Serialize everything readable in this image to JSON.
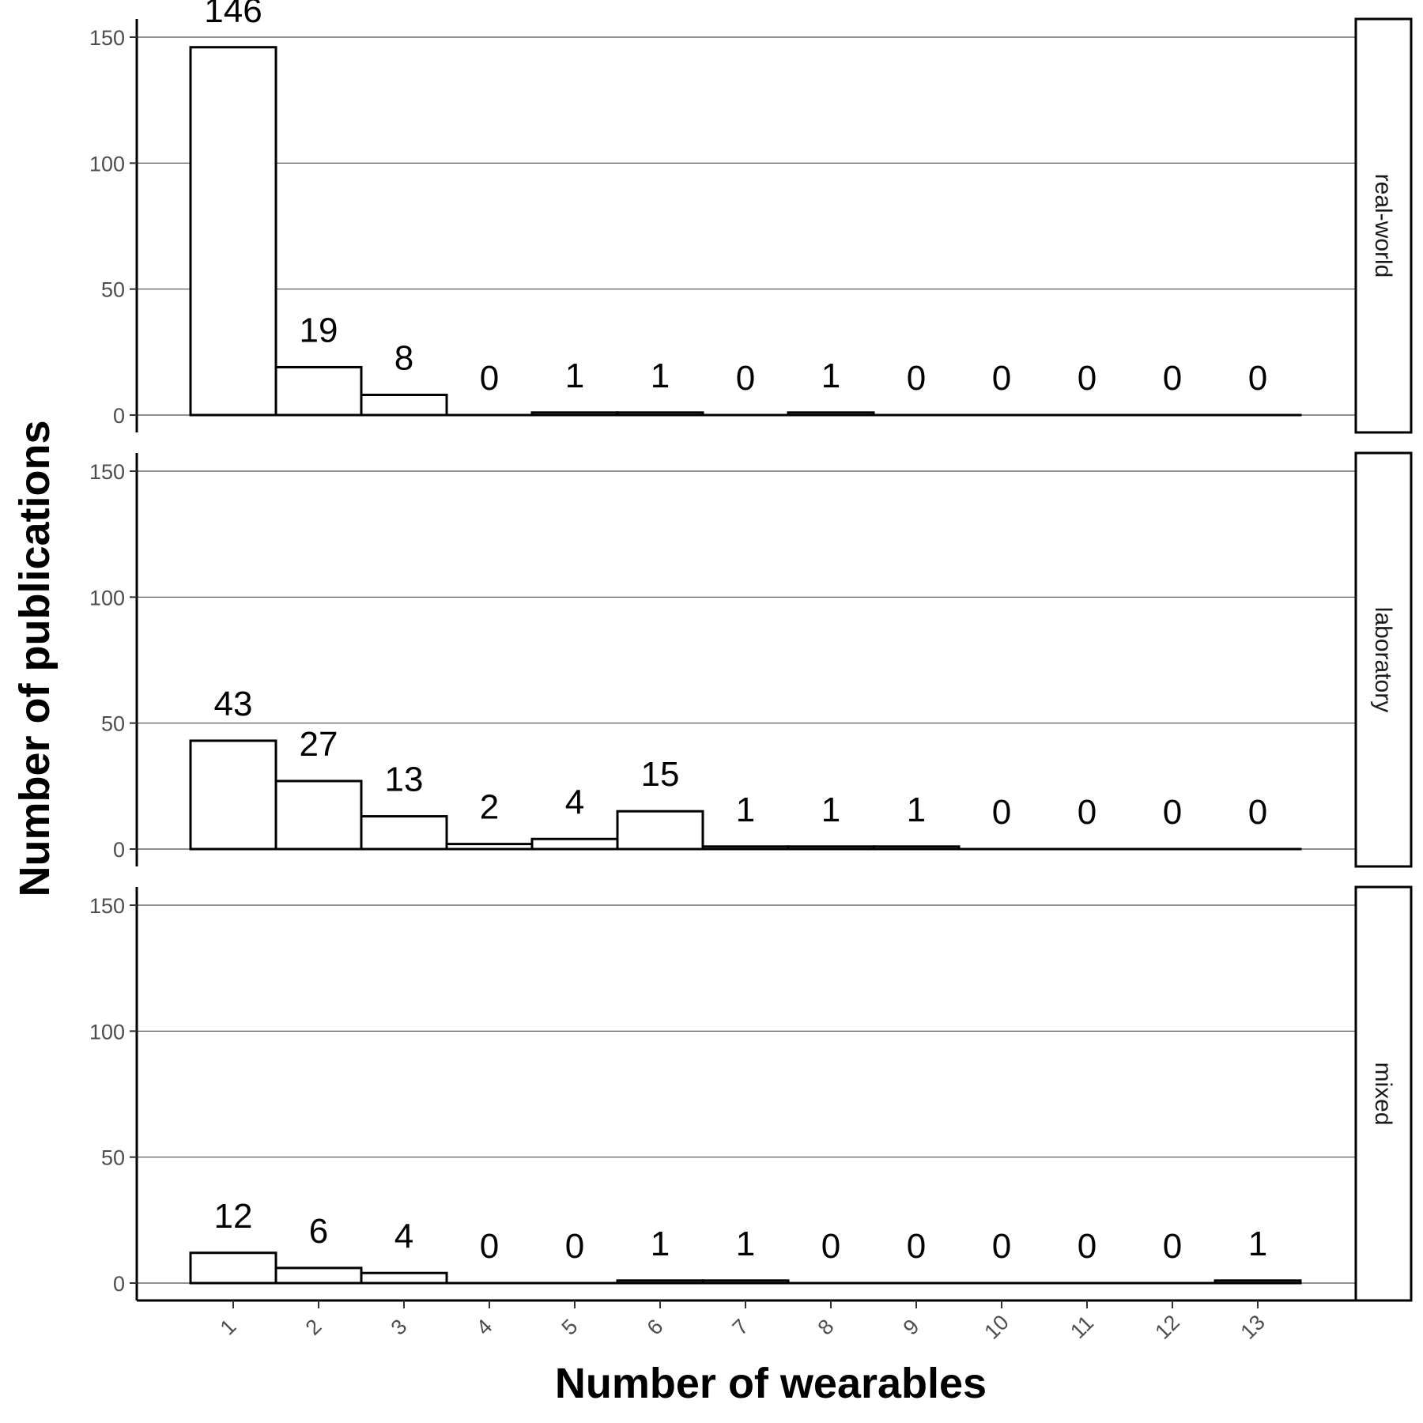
{
  "chart_data": {
    "type": "bar",
    "xlabel": "Number of wearables",
    "ylabel": "Number of publications",
    "categories": [
      "1",
      "2",
      "3",
      "4",
      "5",
      "6",
      "7",
      "8",
      "9",
      "10",
      "11",
      "12",
      "13"
    ],
    "ylim": [
      0,
      150
    ],
    "yticks": [
      0,
      50,
      100,
      150
    ],
    "grid": "horizontal major",
    "panels": [
      {
        "name": "real-world",
        "values": [
          146,
          19,
          8,
          0,
          1,
          1,
          0,
          1,
          0,
          0,
          0,
          0,
          0
        ]
      },
      {
        "name": "laboratory",
        "values": [
          43,
          27,
          13,
          2,
          4,
          15,
          1,
          1,
          1,
          0,
          0,
          0,
          0
        ]
      },
      {
        "name": "mixed",
        "values": [
          12,
          6,
          4,
          0,
          0,
          1,
          1,
          0,
          0,
          0,
          0,
          0,
          1
        ]
      }
    ]
  },
  "colors": {
    "bar_fill": "#ffffff",
    "bar_stroke": "#000000",
    "grid": "#4d4d4d",
    "tick_text": "#4d4d4d"
  }
}
